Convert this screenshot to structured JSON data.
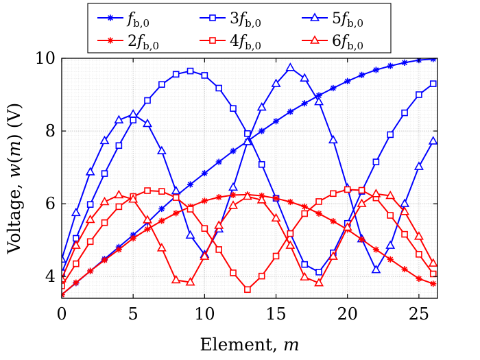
{
  "chart_data": {
    "type": "line",
    "title": "",
    "xlabel": "Element, m",
    "ylabel": "Voltage, w(m) (V)",
    "xlabel_parts": [
      "Element, ",
      "m"
    ],
    "ylabel_parts": [
      "Voltage, ",
      "w",
      "(",
      "m",
      ") (V)"
    ],
    "xlim": [
      0,
      26.3
    ],
    "ylim": [
      3.4,
      10
    ],
    "xticks": [
      0,
      5,
      10,
      15,
      20,
      25
    ],
    "yticks": [
      4,
      6,
      8,
      10
    ],
    "grid": true,
    "legend_position": "top",
    "x": [
      0,
      1,
      2,
      3,
      4,
      5,
      6,
      7,
      8,
      9,
      10,
      11,
      12,
      13,
      14,
      15,
      16,
      17,
      18,
      19,
      20,
      21,
      22,
      23,
      24,
      25,
      26
    ],
    "series": [
      {
        "name": "f_b,0",
        "legend": {
          "coef": "",
          "sub": "b,0"
        },
        "color": "#0000ff",
        "marker": "asterisk",
        "values": [
          3.5,
          3.82,
          4.15,
          4.48,
          4.81,
          5.14,
          5.48,
          5.86,
          6.21,
          6.53,
          6.84,
          7.15,
          7.45,
          7.72,
          8.0,
          8.27,
          8.53,
          8.76,
          8.98,
          9.18,
          9.37,
          9.54,
          9.68,
          9.79,
          9.88,
          9.95,
          9.98
        ]
      },
      {
        "name": "3f_b,0",
        "legend": {
          "coef": "3",
          "sub": "b,0"
        },
        "color": "#0000ff",
        "marker": "square",
        "values": [
          4.1,
          5.05,
          5.98,
          6.83,
          7.6,
          8.3,
          8.84,
          9.28,
          9.56,
          9.65,
          9.53,
          9.18,
          8.62,
          7.93,
          7.08,
          6.15,
          5.18,
          4.33,
          4.12,
          4.65,
          5.46,
          6.34,
          7.15,
          7.9,
          8.5,
          9.0,
          9.3
        ]
      },
      {
        "name": "5f_b,0",
        "legend": {
          "coef": "5",
          "sub": "b,0"
        },
        "color": "#0000ff",
        "marker": "triangle",
        "values": [
          4.47,
          5.75,
          6.87,
          7.73,
          8.3,
          8.46,
          8.2,
          7.45,
          6.35,
          5.13,
          4.6,
          5.3,
          6.45,
          7.7,
          8.65,
          9.3,
          9.74,
          9.45,
          8.8,
          7.75,
          6.43,
          5.03,
          4.18,
          4.85,
          6.0,
          7.02,
          7.72
        ]
      },
      {
        "name": "2f_b,0",
        "legend": {
          "coef": "2",
          "sub": "b,0"
        },
        "color": "#ff0000",
        "marker": "asterisk",
        "values": [
          3.5,
          3.83,
          4.15,
          4.45,
          4.74,
          5.05,
          5.3,
          5.53,
          5.74,
          5.92,
          6.08,
          6.18,
          6.24,
          6.25,
          6.22,
          6.15,
          6.05,
          5.92,
          5.73,
          5.52,
          5.29,
          5.02,
          4.74,
          4.47,
          4.2,
          3.94,
          3.8
        ]
      },
      {
        "name": "4f_b,0",
        "legend": {
          "coef": "4",
          "sub": "b,0"
        },
        "color": "#ff0000",
        "marker": "square",
        "values": [
          3.74,
          4.35,
          4.96,
          5.48,
          5.92,
          6.2,
          6.36,
          6.34,
          6.17,
          5.85,
          5.32,
          4.74,
          4.1,
          3.64,
          4.01,
          4.56,
          5.18,
          5.73,
          6.06,
          6.28,
          6.39,
          6.37,
          6.16,
          5.68,
          5.16,
          4.61,
          4.07
        ]
      },
      {
        "name": "6f_b,0",
        "legend": {
          "coef": "6",
          "sub": "b,0"
        },
        "color": "#ff0000",
        "marker": "triangle",
        "values": [
          3.93,
          4.85,
          5.56,
          6.05,
          6.24,
          6.12,
          5.55,
          4.78,
          3.9,
          3.84,
          4.55,
          5.4,
          5.95,
          6.2,
          6.1,
          5.6,
          4.85,
          3.98,
          3.82,
          4.55,
          5.35,
          6.0,
          6.27,
          6.22,
          5.78,
          5.1,
          4.36
        ]
      }
    ]
  }
}
